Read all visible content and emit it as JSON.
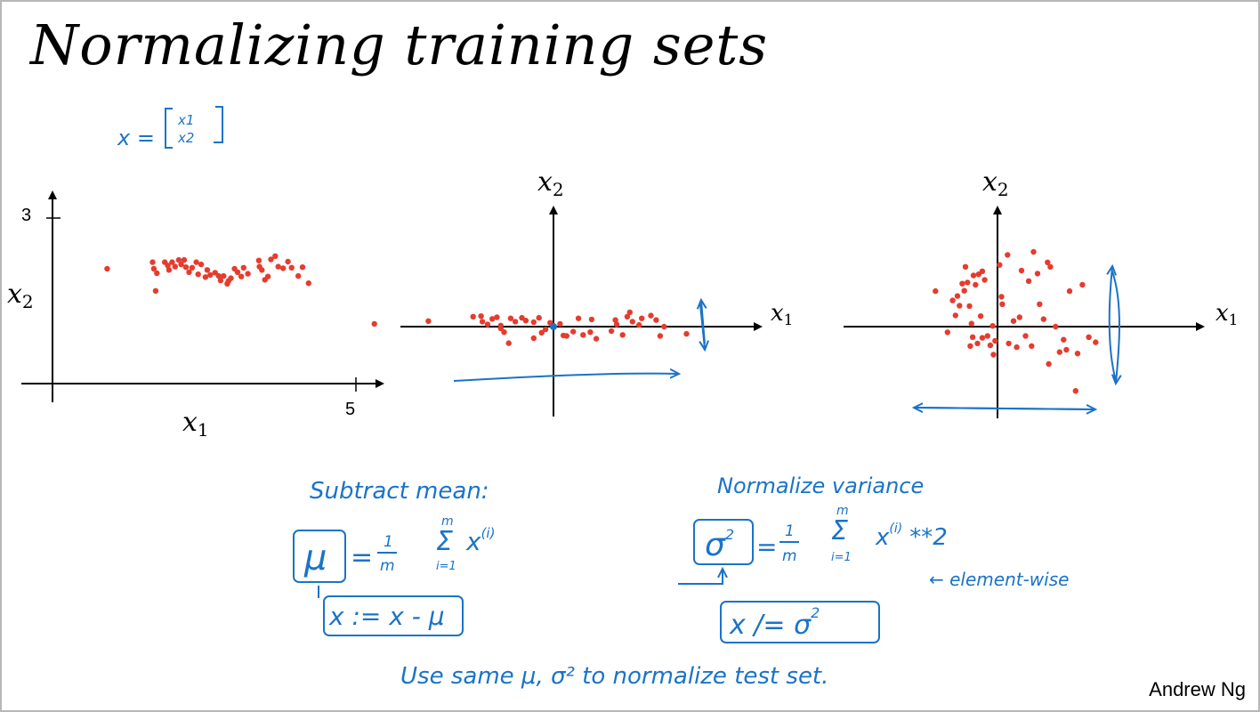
{
  "slide": {
    "title": "Normalizing training sets",
    "author": "Andrew Ng",
    "colors": {
      "ink": "#000000",
      "points": "#e53c2e",
      "handwriting": "#1a73c8"
    }
  },
  "vector_def": {
    "lhs": "x =",
    "top": "x1",
    "bottom": "x2"
  },
  "plots": [
    {
      "name": "original",
      "xlabel": "x",
      "xlabel_sub": "1",
      "ylabel": "x",
      "ylabel_sub": "2",
      "x_tick": "5",
      "y_tick": "3",
      "points": [
        [
          0.9,
          2.08
        ],
        [
          1.65,
          2.2
        ],
        [
          1.67,
          2.08
        ],
        [
          1.7,
          1.68
        ],
        [
          1.72,
          2.0
        ],
        [
          1.85,
          2.2
        ],
        [
          1.9,
          2.14
        ],
        [
          1.92,
          2.06
        ],
        [
          1.97,
          2.2
        ],
        [
          2.02,
          2.12
        ],
        [
          2.08,
          2.24
        ],
        [
          2.12,
          2.16
        ],
        [
          2.17,
          2.24
        ],
        [
          2.2,
          2.11
        ],
        [
          2.25,
          2.02
        ],
        [
          2.3,
          2.1
        ],
        [
          2.37,
          2.2
        ],
        [
          2.4,
          1.98
        ],
        [
          2.45,
          2.16
        ],
        [
          2.52,
          1.93
        ],
        [
          2.55,
          2.06
        ],
        [
          2.6,
          1.97
        ],
        [
          2.68,
          2.01
        ],
        [
          2.74,
          1.95
        ],
        [
          2.77,
          1.87
        ],
        [
          2.82,
          1.95
        ],
        [
          2.88,
          1.81
        ],
        [
          2.9,
          1.86
        ],
        [
          2.94,
          1.91
        ],
        [
          3.0,
          2.08
        ],
        [
          3.05,
          2.02
        ],
        [
          3.11,
          1.94
        ],
        [
          3.15,
          2.1
        ],
        [
          3.22,
          1.99
        ],
        [
          3.4,
          2.23
        ],
        [
          3.41,
          2.12
        ],
        [
          3.45,
          2.06
        ],
        [
          3.5,
          1.88
        ],
        [
          3.55,
          1.94
        ],
        [
          3.6,
          2.25
        ],
        [
          3.67,
          2.31
        ],
        [
          3.72,
          2.12
        ],
        [
          3.8,
          2.09
        ],
        [
          3.88,
          2.21
        ],
        [
          3.94,
          2.1
        ],
        [
          4.05,
          1.95
        ],
        [
          4.22,
          1.82
        ],
        [
          4.12,
          2.11
        ]
      ]
    },
    {
      "name": "mean-subtracted",
      "xlabel": "x",
      "xlabel_sub": "1",
      "ylabel": "x",
      "ylabel_sub": "2",
      "points": [
        [
          -2.72,
          0.05
        ],
        [
          -1.9,
          0.1
        ],
        [
          -1.22,
          0.18
        ],
        [
          -1.1,
          0.19
        ],
        [
          -1.08,
          0.09
        ],
        [
          -1.0,
          0.04
        ],
        [
          -0.93,
          0.14
        ],
        [
          -0.86,
          0.17
        ],
        [
          -0.8,
          0.02
        ],
        [
          -0.75,
          -0.1
        ],
        [
          -0.65,
          0.15
        ],
        [
          -0.58,
          0.09
        ],
        [
          -0.48,
          0.16
        ],
        [
          -0.42,
          0.11
        ],
        [
          -0.3,
          0.08
        ],
        [
          -0.22,
          0.16
        ],
        [
          -0.18,
          -0.11
        ],
        [
          -0.12,
          -0.05
        ],
        [
          -0.05,
          0.07
        ],
        [
          0.1,
          0.05
        ],
        [
          0.15,
          -0.16
        ],
        [
          0.3,
          -0.09
        ],
        [
          0.38,
          0.15
        ],
        [
          0.45,
          -0.15
        ],
        [
          0.56,
          -0.1
        ],
        [
          0.65,
          -0.22
        ],
        [
          0.88,
          -0.08
        ],
        [
          0.94,
          0.12
        ],
        [
          0.96,
          0.04
        ],
        [
          1.05,
          -0.15
        ],
        [
          1.12,
          0.18
        ],
        [
          1.16,
          0.26
        ],
        [
          1.2,
          0.09
        ],
        [
          1.3,
          0.03
        ],
        [
          1.34,
          0.15
        ],
        [
          1.48,
          0.2
        ],
        [
          1.56,
          0.12
        ],
        [
          1.62,
          -0.17
        ],
        [
          1.68,
          0.0
        ],
        [
          2.02,
          -0.13
        ],
        [
          -0.8,
          -0.03
        ],
        [
          -0.68,
          -0.3
        ],
        [
          -0.3,
          -0.21
        ],
        [
          0.58,
          0.13
        ],
        [
          0.2,
          -0.17
        ]
      ]
    },
    {
      "name": "variance-normalized",
      "xlabel": "x",
      "xlabel_sub": "1",
      "ylabel": "x",
      "ylabel_sub": "2",
      "points": [
        [
          -1.55,
          0.95
        ],
        [
          -1.12,
          0.7
        ],
        [
          -1.05,
          0.3
        ],
        [
          -1.0,
          0.82
        ],
        [
          -0.95,
          0.56
        ],
        [
          -0.88,
          1.15
        ],
        [
          -0.83,
          0.96
        ],
        [
          -0.8,
          1.6
        ],
        [
          -0.75,
          1.18
        ],
        [
          -0.7,
          0.55
        ],
        [
          -0.65,
          0.08
        ],
        [
          -0.6,
          1.37
        ],
        [
          -0.55,
          1.12
        ],
        [
          -0.47,
          1.4
        ],
        [
          -0.42,
          0.28
        ],
        [
          -0.38,
          1.48
        ],
        [
          -0.32,
          1.25
        ],
        [
          -0.12,
          0.02
        ],
        [
          -0.06,
          -0.38
        ],
        [
          0.05,
          1.65
        ],
        [
          0.1,
          0.8
        ],
        [
          0.12,
          0.6
        ],
        [
          0.25,
          1.92
        ],
        [
          0.4,
          0.15
        ],
        [
          0.48,
          -0.55
        ],
        [
          0.55,
          0.25
        ],
        [
          0.6,
          1.5
        ],
        [
          0.7,
          -0.25
        ],
        [
          0.78,
          1.22
        ],
        [
          0.9,
          2.0
        ],
        [
          1.0,
          1.42
        ],
        [
          1.05,
          0.6
        ],
        [
          1.15,
          0.2
        ],
        [
          1.25,
          1.72
        ],
        [
          1.32,
          1.6
        ],
        [
          1.45,
          0.0
        ],
        [
          1.55,
          -0.68
        ],
        [
          1.72,
          -0.62
        ],
        [
          1.8,
          0.95
        ],
        [
          2.0,
          -0.72
        ],
        [
          2.12,
          1.12
        ],
        [
          1.95,
          -1.72
        ],
        [
          -0.62,
          -0.28
        ],
        [
          -0.38,
          -0.3
        ],
        [
          -0.25,
          -0.25
        ],
        [
          -0.18,
          -0.5
        ],
        [
          -0.5,
          -0.45
        ],
        [
          -0.68,
          -0.52
        ],
        [
          -0.1,
          -0.75
        ],
        [
          0.28,
          -0.45
        ],
        [
          0.85,
          -0.52
        ],
        [
          1.65,
          -0.35
        ],
        [
          2.45,
          -0.42
        ],
        [
          2.28,
          -0.28
        ],
        [
          -1.25,
          -0.15
        ],
        [
          1.28,
          -1.0
        ]
      ]
    }
  ],
  "notes": {
    "subtract_mean": "Subtract mean:",
    "mu_formula": {
      "lhs": "μ",
      "eq": "=",
      "frac_num": "1",
      "frac_den": "m",
      "sum_top": "m",
      "sum_bottom": "i=1",
      "term": "x",
      "term_sup": "(i)"
    },
    "mu_update": "x := x - μ",
    "normalize_variance": "Normalize variance",
    "sigma_formula": {
      "lhs": "σ",
      "lhs_sup": "2",
      "eq": "=",
      "frac_num": "1",
      "frac_den": "m",
      "sum_top": "m",
      "sum_bottom": "i=1",
      "term": "x",
      "term_sup": "(i)",
      "tail": "**2"
    },
    "element_wise": "← element-wise",
    "sigma_update": "x /= σ",
    "sigma_update_sup": "2",
    "test_set": "Use same μ, σ² to normalize test set."
  }
}
